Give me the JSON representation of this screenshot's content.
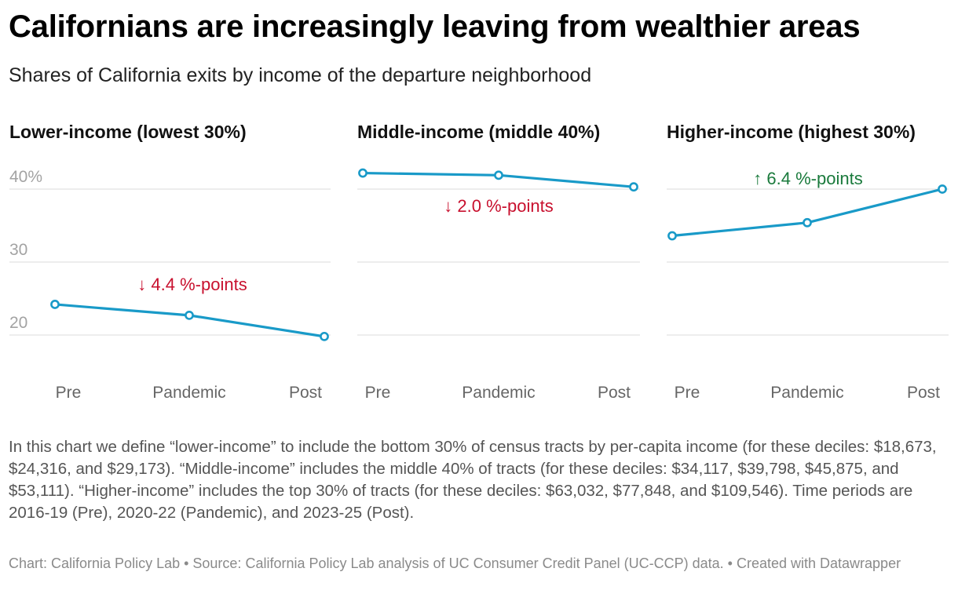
{
  "header": {
    "title": "Californians are increasingly leaving from wealthier areas",
    "subtitle": "Shares of California exits by income of the departure neighborhood"
  },
  "chart_data": {
    "type": "line",
    "y_unit": "%",
    "ylim": [
      14,
      44
    ],
    "yticks": [
      {
        "value": 40,
        "label": "40%"
      },
      {
        "value": 30,
        "label": "30"
      },
      {
        "value": 20,
        "label": "20"
      }
    ],
    "categories": [
      "Pre",
      "Pandemic",
      "Post"
    ],
    "line_color": "#199ac8",
    "grid": true,
    "panels": [
      {
        "title": "Lower-income (lowest 30%)",
        "values": [
          24.2,
          22.7,
          19.8
        ],
        "annotation": "↓ 4.4 %-points",
        "annotation_color": "#c8102e"
      },
      {
        "title": "Middle-income (middle 40%)",
        "values": [
          42.2,
          41.9,
          40.3
        ],
        "annotation": "↓ 2.0 %-points",
        "annotation_color": "#c8102e"
      },
      {
        "title": "Higher-income (highest 30%)",
        "values": [
          33.6,
          35.4,
          40.0
        ],
        "annotation": "↑ 6.4 %-points",
        "annotation_color": "#1a7a3c"
      }
    ]
  },
  "notes": "In this chart we define “lower-income” to include the bottom 30% of census tracts by per-capita income (for these deciles: $18,673, $24,316, and $29,173). “Middle-income” includes the middle 40% of tracts (for these deciles: $34,117, $39,798, $45,875, and $53,111). “Higher-income” includes the top 30% of tracts (for these deciles: $63,032, $77,848, and $109,546). Time periods are 2016-19 (Pre), 2020-22 (Pandemic), and 2023-25 (Post).",
  "footer": "Chart: California Policy Lab • Source: California Policy Lab analysis of UC Consumer Credit Panel (UC-CCP) data. • Created with Datawrapper"
}
